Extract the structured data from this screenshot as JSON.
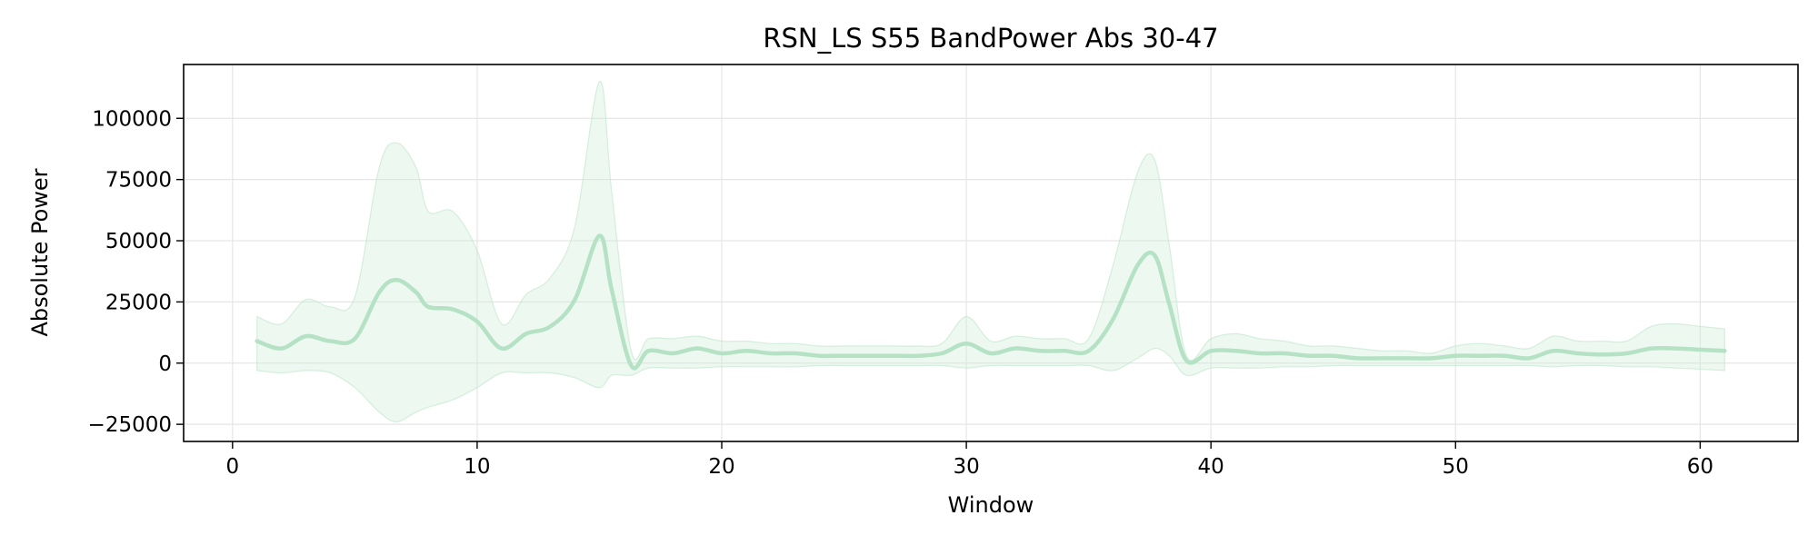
{
  "chart_data": {
    "type": "line",
    "title": "RSN_LS S55 BandPower Abs 30-47",
    "xlabel": "Window",
    "ylabel": "Absolute Power",
    "xlim": [
      -2,
      64
    ],
    "ylim": [
      -32000,
      122000
    ],
    "xticks": [
      0,
      10,
      20,
      30,
      40,
      50,
      60
    ],
    "yticks": [
      -25000,
      0,
      25000,
      50000,
      75000,
      100000
    ],
    "ytick_labels": [
      "−25000",
      "0",
      "25000",
      "50000",
      "75000",
      "100000"
    ],
    "grid": true,
    "legend": "none",
    "colors": {
      "line": "#b5e2c4",
      "band": "#c9ebd3",
      "band_edge": "#bfe5cb",
      "grid": "#e6e6e6"
    },
    "series": [
      {
        "x": [
          1,
          2,
          3,
          4,
          5,
          6,
          6.7,
          7.5,
          8,
          9,
          10,
          11,
          12,
          13,
          14,
          15,
          15.5,
          16.3,
          17,
          18,
          19,
          20,
          21,
          22,
          23,
          24,
          25,
          26,
          27,
          28,
          29,
          30,
          31,
          32,
          33,
          34,
          35,
          36,
          37,
          37.7,
          38.3,
          39,
          40,
          41,
          42,
          43,
          44,
          45,
          46,
          47,
          48,
          49,
          50,
          51,
          52,
          53,
          54,
          55,
          56,
          57,
          58,
          59,
          60,
          61
        ],
        "values": [
          9000,
          6000,
          11000,
          9000,
          10000,
          29000,
          34000,
          29000,
          23000,
          22000,
          17000,
          6000,
          12000,
          15000,
          26000,
          52000,
          30000,
          -1000,
          5000,
          4000,
          6000,
          4000,
          5000,
          4000,
          4000,
          3000,
          3000,
          3000,
          3000,
          3000,
          4000,
          8000,
          4000,
          6000,
          5000,
          5000,
          5000,
          18000,
          40000,
          44000,
          24000,
          1000,
          5000,
          5000,
          4000,
          4000,
          3000,
          3000,
          2000,
          2000,
          2000,
          2000,
          3000,
          3000,
          3000,
          2000,
          5000,
          4000,
          3500,
          4000,
          6000,
          6000,
          5500,
          5000
        ],
        "upper": [
          19000,
          16000,
          26000,
          23000,
          27000,
          80000,
          90000,
          80000,
          62000,
          62000,
          46000,
          16000,
          28000,
          35000,
          56000,
          115000,
          70000,
          5000,
          10000,
          10000,
          11000,
          9000,
          9000,
          8000,
          8000,
          7000,
          7000,
          7000,
          7000,
          7000,
          8000,
          19000,
          9000,
          11000,
          10000,
          10000,
          10000,
          40000,
          78000,
          83000,
          48000,
          3000,
          10000,
          12000,
          10000,
          9000,
          7000,
          7000,
          6000,
          5000,
          5000,
          4000,
          7000,
          8000,
          7000,
          6000,
          11000,
          9000,
          9000,
          9000,
          15000,
          16000,
          15000,
          14000
        ],
        "lower": [
          -3000,
          -4000,
          -3000,
          -4000,
          -10000,
          -20000,
          -24000,
          -20000,
          -18000,
          -15000,
          -10000,
          -4000,
          -4000,
          -4000,
          -6000,
          -10000,
          -5000,
          -5000,
          -2000,
          -2000,
          -2000,
          -1500,
          -1500,
          -1500,
          -1500,
          -1000,
          -1000,
          -1000,
          -1000,
          -1000,
          -1000,
          -2000,
          -1000,
          -1000,
          -1000,
          -1000,
          -1000,
          -3000,
          2000,
          6000,
          3000,
          -5000,
          -2000,
          -2000,
          -2000,
          -1500,
          -1500,
          -1000,
          -1000,
          -1000,
          -1000,
          -1000,
          -1000,
          -1000,
          -1000,
          -1000,
          -1500,
          -1000,
          -1000,
          -1500,
          -1500,
          -2000,
          -2500,
          -3000
        ]
      }
    ]
  }
}
